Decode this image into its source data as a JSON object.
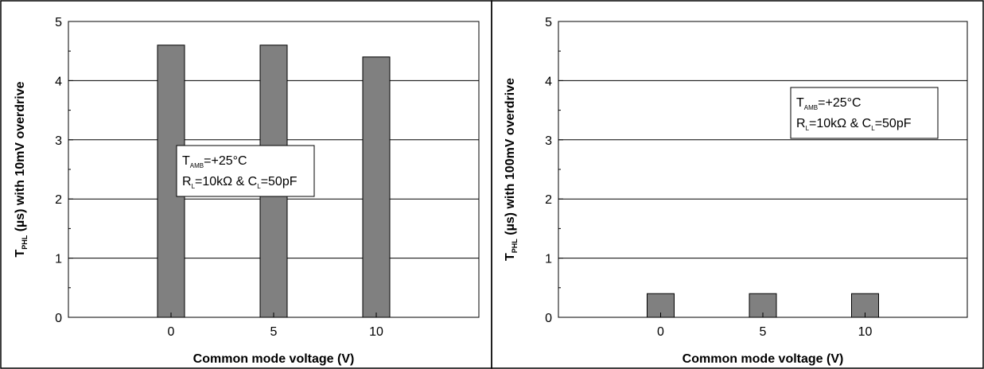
{
  "chart_data": [
    {
      "type": "bar",
      "categories": [
        "0",
        "5",
        "10"
      ],
      "values": [
        4.6,
        4.6,
        4.4
      ],
      "ylabel_main": "T",
      "ylabel_sub": "PHL",
      "ylabel_rest": " (µs) with 10mV overdrive",
      "xlabel": "Common mode voltage (V)",
      "ylim": [
        0,
        5
      ],
      "yticks": [
        "0",
        "1",
        "2",
        "3",
        "4",
        "5"
      ],
      "grid": true,
      "bar_color": "#808080",
      "annotation": {
        "line1": {
          "a": "T",
          "a_sub": "AMB",
          "b": "=+25°C"
        },
        "line2": {
          "a": "R",
          "a_sub": "L",
          "b": "=10kΩ  & C",
          "b_sub": "L",
          "c": "=50pF"
        }
      }
    },
    {
      "type": "bar",
      "categories": [
        "0",
        "5",
        "10"
      ],
      "values": [
        0.4,
        0.4,
        0.4
      ],
      "ylabel_main": "T",
      "ylabel_sub": "PHL",
      "ylabel_rest": " (µs) with 100mV overdrive",
      "xlabel": "Common mode voltage (V)",
      "ylim": [
        0,
        5
      ],
      "yticks": [
        "0",
        "1",
        "2",
        "3",
        "4",
        "5"
      ],
      "grid": true,
      "bar_color": "#808080",
      "annotation": {
        "line1": {
          "a": "T",
          "a_sub": "AMB",
          "b": "=+25°C"
        },
        "line2": {
          "a": "R",
          "a_sub": "L",
          "b": "=10kΩ  & C",
          "b_sub": "L",
          "c": "=50pF"
        }
      }
    }
  ]
}
